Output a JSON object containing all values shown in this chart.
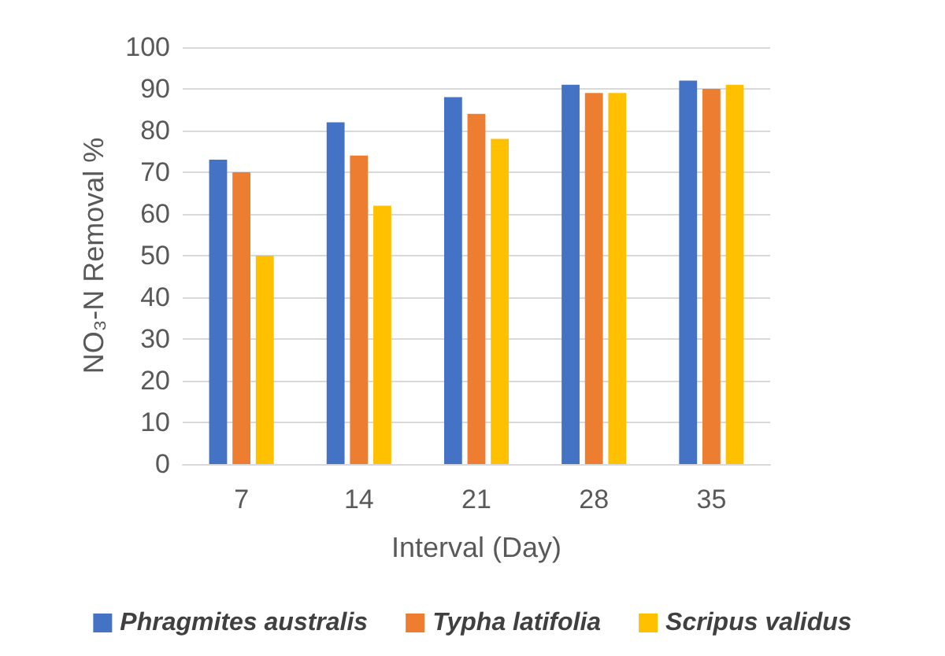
{
  "chart_data": {
    "type": "bar",
    "xlabel": "Interval (Day)",
    "ylabel": "NO₃-N Removal %",
    "categories": [
      "7",
      "14",
      "21",
      "28",
      "35"
    ],
    "series": [
      {
        "name": "Phragmites australis",
        "color": "#4472c4",
        "values": [
          73,
          82,
          88,
          91,
          92
        ]
      },
      {
        "name": "Typha latifolia",
        "color": "#ed7d31",
        "values": [
          70,
          74,
          84,
          89,
          90
        ]
      },
      {
        "name": "Scripus validus",
        "color": "#ffc000",
        "values": [
          50,
          62,
          78,
          89,
          91
        ]
      }
    ],
    "ylim": [
      0,
      100
    ],
    "yticks": [
      0,
      10,
      20,
      30,
      40,
      50,
      60,
      70,
      80,
      90,
      100
    ],
    "grid": "y",
    "legend": "bottom"
  }
}
